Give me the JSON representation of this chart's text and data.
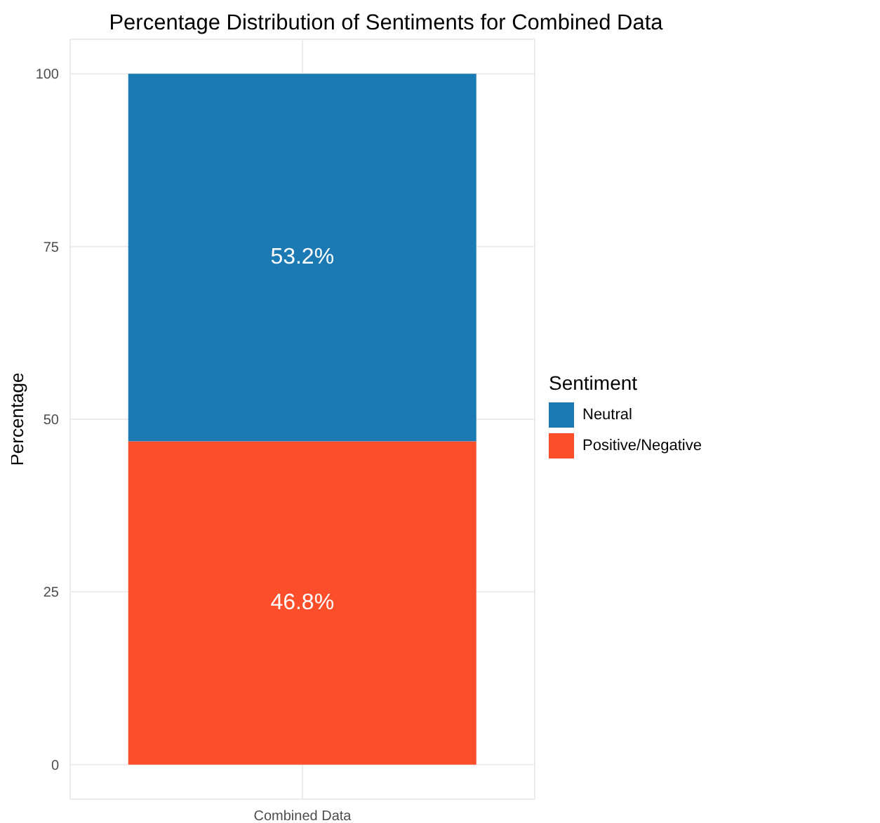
{
  "chart_data": {
    "type": "bar",
    "title": "Percentage Distribution of Sentiments for Combined Data",
    "ylabel": "Percentage",
    "legend_title": "Sentiment",
    "categories": [
      "Combined Data"
    ],
    "stacked": true,
    "series": [
      {
        "name": "Positive/Negative",
        "color": "#fc4e2a",
        "values": [
          46.8
        ],
        "value_labels": [
          "46.8%"
        ]
      },
      {
        "name": "Neutral",
        "color": "#1b7ab3",
        "values": [
          53.2
        ],
        "value_labels": [
          "53.2%"
        ]
      }
    ],
    "ylim": [
      -5,
      105
    ],
    "yticks": [
      0,
      25,
      50,
      75,
      100
    ],
    "grid": true,
    "legend": "right"
  }
}
